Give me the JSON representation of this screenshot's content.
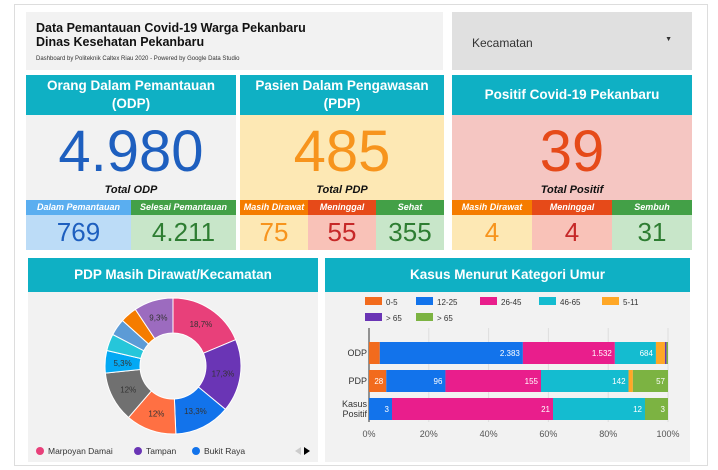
{
  "header": {
    "title": "Data Pemantauan Covid-19 Warga Pekanbaru",
    "subtitle": "Dinas Kesehatan Pekanbaru",
    "credit": "Dashboard by Politeknik Caltex Riau 2020 - Powered by Google Data Studio"
  },
  "filter": {
    "label": "Kecamatan",
    "icon": "caret-down-icon"
  },
  "cards": [
    {
      "title": "Orang Dalam Pemantauan (ODP)",
      "value": "4.980",
      "label": "Total ODP",
      "bg": "#f2f2f2",
      "color": "#1e5fbf",
      "subs": [
        {
          "label": "Dalam Pemantauan",
          "value": "769",
          "hbg": "#5aaef0",
          "bg": "#bcdcf7",
          "color": "#1e5fbf"
        },
        {
          "label": "Selesai Pemantauan",
          "value": "4.211",
          "hbg": "#43a047",
          "bg": "#c8e6c9",
          "color": "#2e7d32"
        }
      ]
    },
    {
      "title": "Pasien Dalam Pengawasan (PDP)",
      "value": "485",
      "label": "Total PDP",
      "bg": "#fde8b4",
      "color": "#f7941d",
      "subs": [
        {
          "label": "Masih Dirawat",
          "value": "75",
          "hbg": "#f57c00",
          "bg": "#fde8b4",
          "color": "#f7941d"
        },
        {
          "label": "Meninggal",
          "value": "55",
          "hbg": "#e64a19",
          "bg": "#f9c2b8",
          "color": "#c62828"
        },
        {
          "label": "Sehat",
          "value": "355",
          "hbg": "#43a047",
          "bg": "#c8e6c9",
          "color": "#2e7d32"
        }
      ]
    },
    {
      "title": "Positif Covid-19 Pekanbaru",
      "value": "39",
      "label": "Total Positif",
      "bg": "#f5c6c2",
      "color": "#e64a19",
      "subs": [
        {
          "label": "Masih Dirawat",
          "value": "4",
          "hbg": "#f57c00",
          "bg": "#fde8b4",
          "color": "#f7941d"
        },
        {
          "label": "Meninggal",
          "value": "4",
          "hbg": "#e64a19",
          "bg": "#f9c2b8",
          "color": "#c62828"
        },
        {
          "label": "Sembuh",
          "value": "31",
          "hbg": "#43a047",
          "bg": "#c8e6c9",
          "color": "#2e7d32"
        }
      ]
    }
  ],
  "chart_data": [
    {
      "type": "pie",
      "title": "PDP Masih Dirawat/Kecamatan",
      "donut": true,
      "slices": [
        {
          "name": "Marpoyan Damai",
          "value": 14,
          "label": "18,7%",
          "color": "#e8407a"
        },
        {
          "name": "Tampan",
          "value": 13,
          "label": "17,3%",
          "color": "#6a35b5"
        },
        {
          "name": "Bukit Raya",
          "value": 10,
          "label": "13,3%",
          "color": "#1273eb"
        },
        {
          "value": 9,
          "label": "12%",
          "color": "#ff7043"
        },
        {
          "value": 9,
          "label": "12%",
          "color": "#707070"
        },
        {
          "value": 4,
          "label": "5,3%",
          "color": "#03a9f4"
        },
        {
          "value": 3,
          "label": "",
          "color": "#26c6da"
        },
        {
          "value": 3,
          "label": "",
          "color": "#5c9bd6"
        },
        {
          "value": 3,
          "label": "",
          "color": "#f57c00"
        },
        {
          "value": 7,
          "label": "9,3%",
          "color": "#9c6bbf"
        }
      ],
      "legend": [
        "Marpoyan Damai",
        "Tampan",
        "Bukit Raya"
      ],
      "legend_placement": "bottom"
    },
    {
      "type": "bar",
      "stacked": "percent",
      "orientation": "horizontal",
      "title": "Kasus Menurut Kategori Umur",
      "categories": [
        "ODP",
        "PDP",
        "Kasus Positif"
      ],
      "series": [
        {
          "name": "0-5",
          "color": "#f26b1d",
          "values": [
            180,
            28,
            0
          ]
        },
        {
          "name": "12-25",
          "color": "#1273eb",
          "values": [
            2383,
            96,
            3
          ]
        },
        {
          "name": "26-45",
          "color": "#e91e8c",
          "values": [
            1532,
            155,
            21
          ]
        },
        {
          "name": "46-65",
          "color": "#14bcd0",
          "values": [
            684,
            142,
            12
          ]
        },
        {
          "name": "5-11",
          "color": "#ffa726",
          "values": [
            150,
            7,
            0
          ]
        },
        {
          "name": "> 65",
          "color": "#6a35b5",
          "values": [
            25,
            0,
            0
          ]
        },
        {
          "name": "> 65",
          "color": "#7cb342",
          "values": [
            26,
            57,
            3
          ]
        }
      ],
      "x_ticks": [
        "0%",
        "20%",
        "40%",
        "60%",
        "80%",
        "100%"
      ],
      "xlim": [
        0,
        100
      ],
      "grid": true,
      "legend_placement": "top"
    }
  ]
}
